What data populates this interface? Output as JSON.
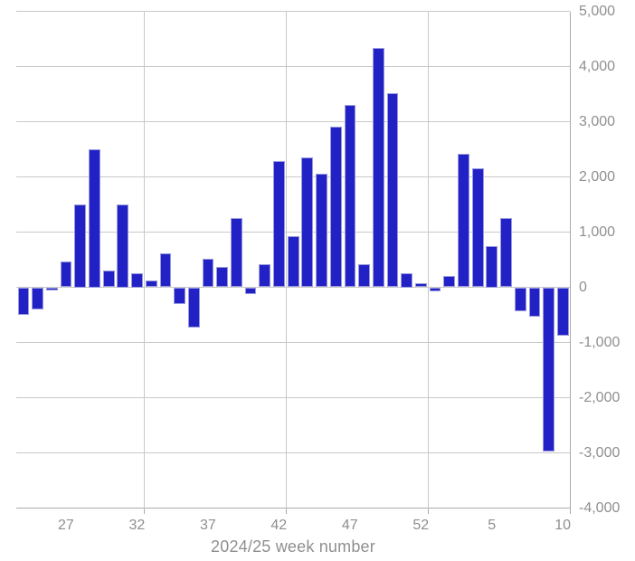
{
  "chart_data": {
    "type": "bar",
    "title": "",
    "xlabel": "2024/25 week number",
    "ylabel": "",
    "categories": [
      "24",
      "25",
      "26",
      "27",
      "28",
      "29",
      "30",
      "31",
      "32",
      "33",
      "34",
      "35",
      "36",
      "37",
      "38",
      "39",
      "40",
      "41",
      "42",
      "43",
      "44",
      "45",
      "46",
      "47",
      "48",
      "49",
      "50",
      "51",
      "52",
      "1",
      "2",
      "3",
      "4",
      "5",
      "6",
      "7",
      "8",
      "9",
      "10"
    ],
    "values": [
      -500,
      -400,
      -50,
      470,
      1500,
      2500,
      310,
      1500,
      250,
      130,
      620,
      -310,
      -730,
      510,
      370,
      1260,
      -130,
      410,
      2280,
      930,
      2350,
      2050,
      2910,
      3310,
      420,
      4330,
      3510,
      250,
      70,
      -80,
      200,
      2420,
      2160,
      750,
      1260,
      -430,
      -530,
      -2970,
      -870
    ],
    "ylim": [
      -4000,
      5000
    ],
    "y_tick_step": 1000,
    "y_tick_labels": [
      "5,000",
      "4,000",
      "3,000",
      "2,000",
      "1,000",
      "0",
      "-1,000",
      "-2,000",
      "-3,000",
      "-4,000"
    ],
    "x_tick_indices": [
      3,
      8,
      13,
      18,
      23,
      28,
      33,
      38
    ],
    "x_tick_labels": [
      "27",
      "32",
      "37",
      "42",
      "47",
      "52",
      "5",
      "10"
    ],
    "vgrid_boundary_slots": [
      9,
      19,
      29
    ],
    "grid": true,
    "legend": false,
    "bar_color": "#2121c6",
    "bar_border_color": "#9a9ade",
    "grid_color": "#c9c9c9",
    "axis_color": "#ababab",
    "label_color": "#8f8f8f"
  }
}
